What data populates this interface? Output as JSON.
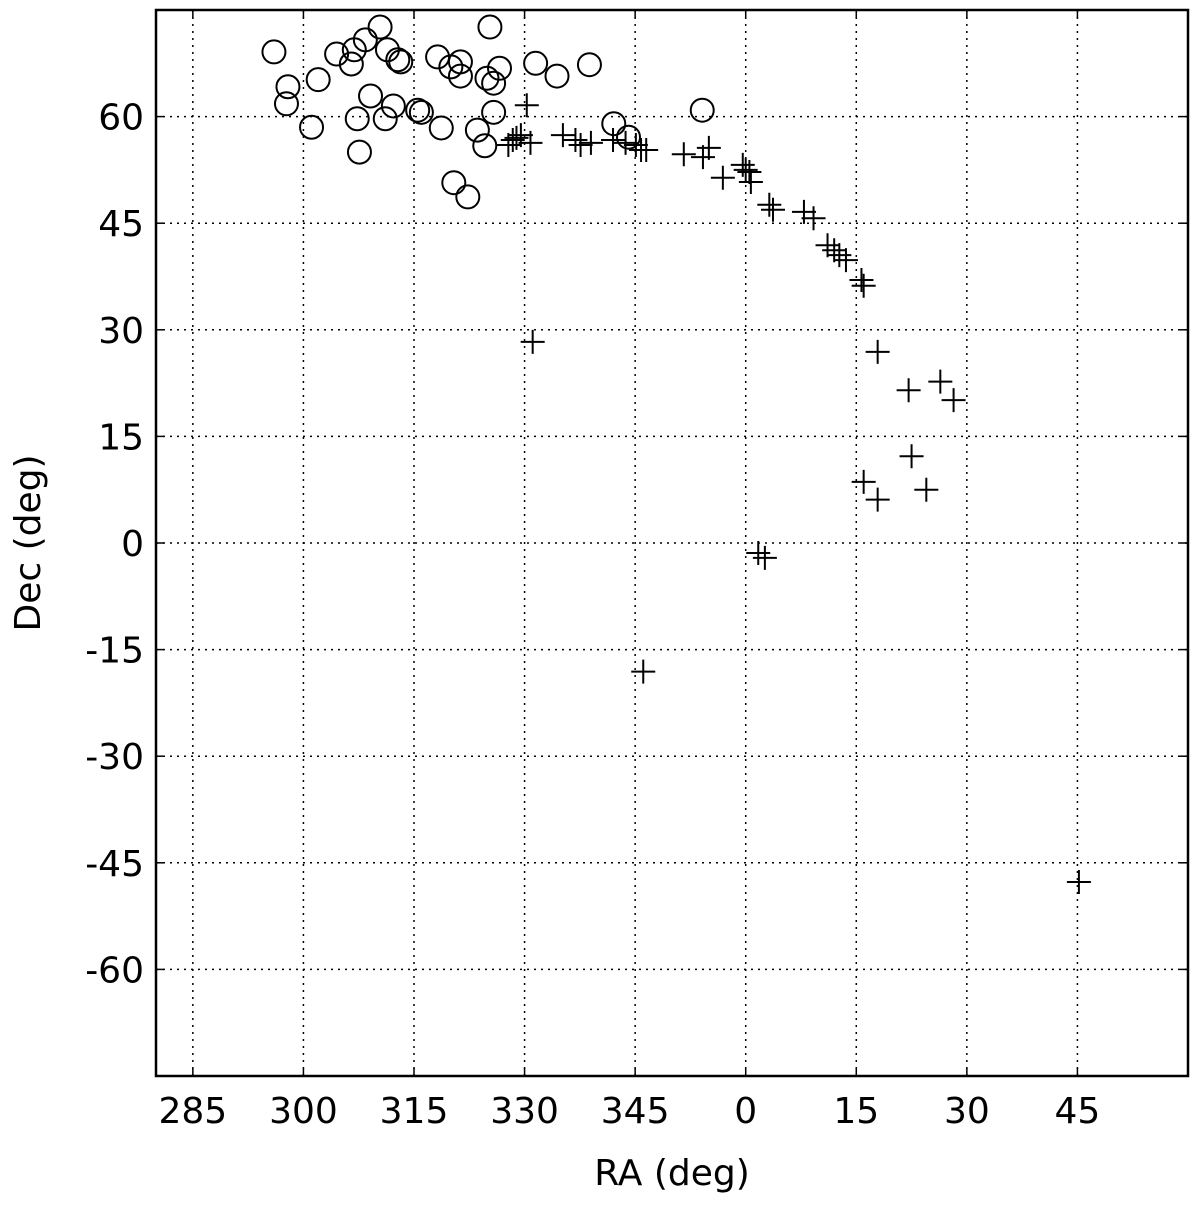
{
  "chart_data": {
    "type": "scatter",
    "xlabel": "RA (deg)",
    "ylabel": "Dec (deg)",
    "xlim": [
      280,
      420
    ],
    "ylim": [
      -75,
      75
    ],
    "xticks": [
      285,
      300,
      315,
      330,
      345,
      {
        "value": 360,
        "label": "0"
      },
      {
        "value": 375,
        "label": "15"
      },
      {
        "value": 390,
        "label": "30"
      },
      {
        "value": 405,
        "label": "45"
      }
    ],
    "yticks": [
      -60,
      -45,
      -30,
      -15,
      0,
      15,
      30,
      45,
      60
    ],
    "grid": true,
    "series": [
      {
        "marker": "circle",
        "color": "#000000",
        "x": [
          296.0,
          297.9,
          297.7,
          302.0,
          301.1,
          304.5,
          306.9,
          306.5,
          308.4,
          310.4,
          307.3,
          307.6,
          309.1,
          311.4,
          312.8,
          313.2,
          311.1,
          312.2,
          315.5,
          316.0,
          318.2,
          318.7,
          320.0,
          321.3,
          321.3,
          320.4,
          322.3,
          323.6,
          324.6,
          324.9,
          325.3,
          325.8,
          325.8,
          326.6,
          331.5,
          334.4,
          338.8,
          342.1,
          344.1,
          354.1
        ],
        "values": [
          69.1,
          64.2,
          61.8,
          65.2,
          58.5,
          68.8,
          69.4,
          67.4,
          70.8,
          72.6,
          59.7,
          55.0,
          62.9,
          69.4,
          68.0,
          67.7,
          59.7,
          61.5,
          60.9,
          60.6,
          68.4,
          58.4,
          67.0,
          67.7,
          65.7,
          50.7,
          48.7,
          58.1,
          55.9,
          65.4,
          72.6,
          64.7,
          60.6,
          66.8,
          67.5,
          65.7,
          67.3,
          59.0,
          57.1,
          60.9
        ]
      },
      {
        "marker": "plus",
        "color": "#000000",
        "x": [
          330.3,
          328.4,
          328.9,
          329.5,
          327.8,
          330.8,
          331.1,
          335.2,
          336.9,
          337.6,
          339.0,
          342.0,
          343.7,
          345.1,
          345.8,
          346.5,
          346.1,
          351.6,
          354.2,
          355.0,
          356.9,
          359.6,
          360.0,
          360.5,
          360.7,
          361.7,
          362.6,
          363.2,
          363.7,
          367.9,
          369.2,
          371.1,
          372.0,
          372.7,
          373.6,
          375.7,
          376.0,
          377.9,
          382.1,
          386.4,
          388.2,
          382.5,
          384.5,
          376.0,
          377.9,
          405.2
        ],
        "values": [
          61.6,
          56.7,
          57.0,
          57.4,
          56.0,
          56.3,
          28.3,
          57.4,
          56.7,
          56.0,
          56.3,
          56.7,
          56.3,
          56.0,
          55.3,
          55.3,
          -18.1,
          54.7,
          54.3,
          55.6,
          51.4,
          53.2,
          52.5,
          52.2,
          50.8,
          -1.4,
          -2.1,
          47.6,
          46.9,
          46.6,
          45.7,
          41.9,
          41.2,
          40.5,
          39.8,
          37.0,
          36.2,
          26.9,
          21.5,
          22.7,
          20.1,
          12.2,
          7.5,
          8.6,
          6.1,
          -47.7
        ]
      }
    ]
  }
}
